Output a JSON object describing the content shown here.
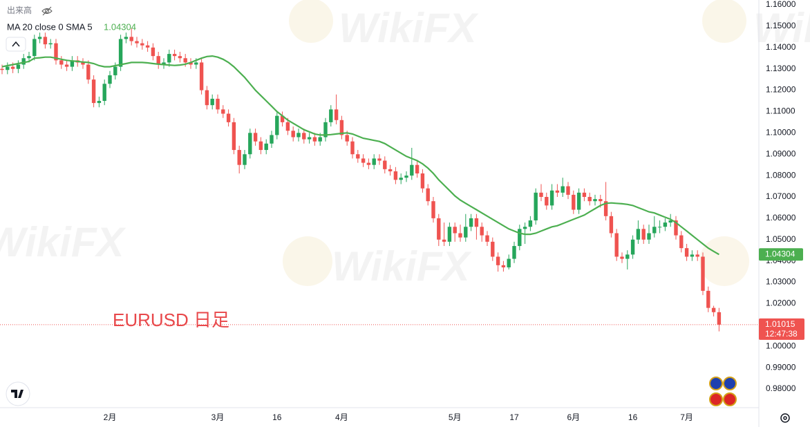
{
  "chart_data": {
    "type": "candlestick",
    "title": "EURUSD 日足",
    "volume_label": "出来高",
    "watermark": "WikiFX",
    "countdown": "12:47:38",
    "up_color": "#26a65b",
    "down_color": "#ef5350",
    "grid": false,
    "ylim": [
      0.97126,
      1.16227
    ],
    "yticks": [
      {
        "value": 1.16,
        "label": "1.16000"
      },
      {
        "value": 1.15,
        "label": "1.15000"
      },
      {
        "value": 1.14,
        "label": "1.14000"
      },
      {
        "value": 1.13,
        "label": "1.13000"
      },
      {
        "value": 1.12,
        "label": "1.12000"
      },
      {
        "value": 1.11,
        "label": "1.11000"
      },
      {
        "value": 1.1,
        "label": "1.10000"
      },
      {
        "value": 1.09,
        "label": "1.09000"
      },
      {
        "value": 1.08,
        "label": "1.08000"
      },
      {
        "value": 1.07,
        "label": "1.07000"
      },
      {
        "value": 1.06,
        "label": "1.06000"
      },
      {
        "value": 1.05,
        "label": "1.05000"
      },
      {
        "value": 1.04,
        "label": "1.04000"
      },
      {
        "value": 1.03,
        "label": "1.03000"
      },
      {
        "value": 1.02,
        "label": "1.02000"
      },
      {
        "value": 1.01,
        "label": "1.01000"
      },
      {
        "value": 1.0,
        "label": "1.00000"
      },
      {
        "value": 0.99,
        "label": "0.99000"
      },
      {
        "value": 0.98,
        "label": "0.98000"
      }
    ],
    "categories": [
      null,
      null,
      null,
      null,
      null,
      null,
      null,
      null,
      null,
      null,
      null,
      null,
      null,
      null,
      null,
      null,
      null,
      null,
      null,
      null,
      "2月",
      null,
      null,
      null,
      null,
      null,
      null,
      null,
      null,
      null,
      null,
      null,
      null,
      null,
      null,
      null,
      null,
      null,
      null,
      null,
      "3月",
      null,
      null,
      null,
      null,
      null,
      null,
      null,
      null,
      null,
      null,
      "16",
      null,
      null,
      null,
      null,
      null,
      null,
      null,
      null,
      null,
      null,
      null,
      "4月",
      null,
      null,
      null,
      null,
      null,
      null,
      null,
      null,
      null,
      null,
      null,
      null,
      null,
      null,
      null,
      null,
      null,
      null,
      null,
      null,
      "5月",
      null,
      null,
      null,
      null,
      null,
      null,
      null,
      null,
      null,
      null,
      "17",
      null,
      null,
      null,
      null,
      null,
      null,
      null,
      null,
      null,
      null,
      "6月",
      null,
      null,
      null,
      null,
      null,
      null,
      null,
      null,
      null,
      null,
      "16",
      null,
      null,
      null,
      null,
      null,
      null,
      null,
      null,
      null,
      "7月",
      null,
      null,
      null,
      null,
      null,
      null
    ],
    "open": [
      1.13,
      1.1295,
      1.131,
      1.13,
      1.132,
      1.135,
      1.136,
      1.144,
      1.145,
      1.1415,
      1.142,
      1.134,
      1.132,
      1.131,
      1.134,
      1.133,
      1.132,
      1.125,
      1.114,
      1.115,
      1.123,
      1.127,
      1.131,
      1.144,
      1.145,
      1.143,
      1.142,
      1.141,
      1.14,
      1.136,
      1.132,
      1.133,
      1.137,
      1.136,
      1.135,
      1.133,
      1.132,
      1.133,
      1.12,
      1.113,
      1.116,
      1.111,
      1.109,
      1.105,
      1.092,
      1.085,
      1.09,
      1.1,
      1.096,
      1.092,
      1.095,
      1.099,
      1.108,
      1.105,
      1.101,
      1.098,
      1.1,
      1.097,
      1.098,
      1.096,
      1.098,
      1.105,
      1.111,
      1.106,
      1.099,
      1.096,
      1.09,
      1.088,
      1.086,
      1.085,
      1.088,
      1.087,
      1.083,
      1.082,
      1.078,
      1.079,
      1.08,
      1.085,
      1.081,
      1.074,
      1.068,
      1.06,
      1.05,
      1.049,
      1.056,
      1.053,
      1.051,
      1.056,
      1.06,
      1.056,
      1.052,
      1.049,
      1.042,
      1.038,
      1.037,
      1.041,
      1.047,
      1.055,
      1.056,
      1.059,
      1.072,
      1.07,
      1.066,
      1.073,
      1.072,
      1.075,
      1.071,
      1.064,
      1.072,
      1.07,
      1.068,
      1.069,
      1.068,
      1.061,
      1.053,
      1.042,
      1.041,
      1.043,
      1.05,
      1.055,
      1.05,
      1.053,
      1.056,
      1.056,
      1.058,
      1.059,
      1.052,
      1.046,
      1.042,
      1.043,
      1.042,
      1.026,
      1.018,
      1.016
    ],
    "high": [
      1.132,
      1.133,
      1.133,
      1.134,
      1.137,
      1.138,
      1.146,
      1.147,
      1.147,
      1.144,
      1.144,
      1.136,
      1.134,
      1.136,
      1.136,
      1.135,
      1.134,
      1.127,
      1.117,
      1.125,
      1.129,
      1.133,
      1.146,
      1.147,
      1.149,
      1.145,
      1.144,
      1.143,
      1.142,
      1.138,
      1.135,
      1.139,
      1.139,
      1.138,
      1.137,
      1.135,
      1.135,
      1.135,
      1.122,
      1.118,
      1.118,
      1.113,
      1.111,
      1.107,
      1.094,
      1.092,
      1.102,
      1.102,
      1.098,
      1.097,
      1.101,
      1.11,
      1.11,
      1.107,
      1.103,
      1.102,
      1.102,
      1.1,
      1.1,
      1.1,
      1.107,
      1.113,
      1.118,
      1.108,
      1.101,
      1.098,
      1.092,
      1.09,
      1.088,
      1.09,
      1.09,
      1.089,
      1.085,
      1.084,
      1.081,
      1.082,
      1.093,
      1.087,
      1.083,
      1.076,
      1.07,
      1.062,
      1.058,
      1.058,
      1.058,
      1.057,
      1.062,
      1.062,
      1.062,
      1.058,
      1.054,
      1.051,
      1.044,
      1.04,
      1.043,
      1.049,
      1.057,
      1.058,
      1.061,
      1.074,
      1.076,
      1.072,
      1.076,
      1.076,
      1.079,
      1.077,
      1.073,
      1.074,
      1.074,
      1.072,
      1.071,
      1.071,
      1.077,
      1.063,
      1.055,
      1.044,
      1.045,
      1.052,
      1.059,
      1.057,
      1.057,
      1.061,
      1.059,
      1.06,
      1.062,
      1.061,
      1.054,
      1.048,
      1.045,
      1.045,
      1.044,
      1.028,
      1.019,
      1.018
    ],
    "low": [
      1.1275,
      1.1275,
      1.128,
      1.128,
      1.13,
      1.133,
      1.134,
      1.142,
      1.1395,
      1.1395,
      1.132,
      1.13,
      1.129,
      1.129,
      1.131,
      1.13,
      1.123,
      1.112,
      1.112,
      1.113,
      1.121,
      1.125,
      1.129,
      1.142,
      1.141,
      1.14,
      1.139,
      1.138,
      1.134,
      1.13,
      1.13,
      1.131,
      1.134,
      1.133,
      1.131,
      1.13,
      1.13,
      1.118,
      1.111,
      1.111,
      1.109,
      1.107,
      1.103,
      1.09,
      1.081,
      1.083,
      1.088,
      1.094,
      1.09,
      1.09,
      1.093,
      1.097,
      1.103,
      1.099,
      1.096,
      1.096,
      1.095,
      1.095,
      1.094,
      1.094,
      1.096,
      1.103,
      1.104,
      1.097,
      1.094,
      1.088,
      1.086,
      1.084,
      1.083,
      1.083,
      1.085,
      1.081,
      1.08,
      1.076,
      1.076,
      1.077,
      1.078,
      1.079,
      1.072,
      1.066,
      1.058,
      1.047,
      1.047,
      1.047,
      1.049,
      1.049,
      1.049,
      1.054,
      1.05,
      1.049,
      1.047,
      1.04,
      1.035,
      1.035,
      1.036,
      1.039,
      1.045,
      1.048,
      1.054,
      1.057,
      1.068,
      1.064,
      1.064,
      1.07,
      1.07,
      1.069,
      1.062,
      1.062,
      1.068,
      1.066,
      1.066,
      1.065,
      1.059,
      1.051,
      1.04,
      1.039,
      1.036,
      1.041,
      1.048,
      1.048,
      1.048,
      1.051,
      1.053,
      1.054,
      1.056,
      1.05,
      1.044,
      1.04,
      1.04,
      1.04,
      1.024,
      1.016,
      1.014,
      1.007
    ],
    "close": [
      1.1295,
      1.131,
      1.13,
      1.132,
      1.135,
      1.136,
      1.144,
      1.145,
      1.1415,
      1.142,
      1.134,
      1.132,
      1.131,
      1.134,
      1.133,
      1.132,
      1.125,
      1.114,
      1.115,
      1.123,
      1.127,
      1.131,
      1.144,
      1.145,
      1.143,
      1.142,
      1.141,
      1.14,
      1.136,
      1.132,
      1.133,
      1.137,
      1.136,
      1.135,
      1.133,
      1.132,
      1.133,
      1.12,
      1.113,
      1.116,
      1.111,
      1.109,
      1.105,
      1.092,
      1.085,
      1.09,
      1.1,
      1.096,
      1.092,
      1.095,
      1.099,
      1.108,
      1.105,
      1.101,
      1.098,
      1.1,
      1.097,
      1.098,
      1.096,
      1.098,
      1.105,
      1.111,
      1.106,
      1.099,
      1.096,
      1.09,
      1.088,
      1.086,
      1.085,
      1.088,
      1.087,
      1.083,
      1.082,
      1.078,
      1.079,
      1.08,
      1.085,
      1.081,
      1.074,
      1.068,
      1.06,
      1.05,
      1.049,
      1.056,
      1.053,
      1.051,
      1.056,
      1.06,
      1.056,
      1.052,
      1.049,
      1.042,
      1.038,
      1.037,
      1.041,
      1.047,
      1.055,
      1.056,
      1.059,
      1.072,
      1.07,
      1.066,
      1.073,
      1.072,
      1.075,
      1.071,
      1.064,
      1.072,
      1.07,
      1.068,
      1.069,
      1.068,
      1.061,
      1.053,
      1.042,
      1.041,
      1.043,
      1.05,
      1.055,
      1.05,
      1.053,
      1.056,
      1.056,
      1.058,
      1.059,
      1.052,
      1.046,
      1.042,
      1.043,
      1.042,
      1.026,
      1.018,
      1.016,
      1.01015
    ],
    "series": [
      {
        "name": "MA 20 close 0 SMA 5",
        "color": "#4caf50",
        "values": [
          1.131,
          1.1315,
          1.132,
          1.1325,
          1.133,
          1.1335,
          1.135,
          1.1352,
          1.1355,
          1.1355,
          1.135,
          1.1345,
          1.134,
          1.1337,
          1.1335,
          1.1332,
          1.133,
          1.1325,
          1.1315,
          1.131,
          1.131,
          1.1315,
          1.132,
          1.1325,
          1.133,
          1.133,
          1.133,
          1.1328,
          1.1325,
          1.1322,
          1.132,
          1.1318,
          1.1316,
          1.1318,
          1.1322,
          1.133,
          1.134,
          1.135,
          1.1358,
          1.136,
          1.1355,
          1.1345,
          1.133,
          1.131,
          1.1285,
          1.126,
          1.123,
          1.12,
          1.1175,
          1.115,
          1.1125,
          1.11,
          1.108,
          1.106,
          1.1045,
          1.103,
          1.1015,
          1.1005,
          1.0995,
          1.099,
          1.099,
          1.0992,
          1.0995,
          1.0998,
          1.1,
          1.0995,
          1.0985,
          1.0975,
          1.097,
          1.0965,
          1.096,
          1.095,
          1.0935,
          1.092,
          1.0905,
          1.089,
          1.088,
          1.087,
          1.0855,
          1.0835,
          1.081,
          1.078,
          1.0755,
          1.073,
          1.0705,
          1.0685,
          1.067,
          1.0655,
          1.064,
          1.0625,
          1.061,
          1.0595,
          1.058,
          1.0565,
          1.055,
          1.054,
          1.053,
          1.0525,
          1.0525,
          1.053,
          1.054,
          1.055,
          1.056,
          1.0565,
          1.0575,
          1.0585,
          1.0595,
          1.0605,
          1.0615,
          1.063,
          1.0645,
          1.066,
          1.067,
          1.0672,
          1.067,
          1.0668,
          1.0665,
          1.066,
          1.065,
          1.064,
          1.063,
          1.0625,
          1.0615,
          1.0605,
          1.0595,
          1.058,
          1.056,
          1.054,
          1.052,
          1.05,
          1.048,
          1.046,
          1.0445,
          1.04304
        ]
      }
    ]
  }
}
